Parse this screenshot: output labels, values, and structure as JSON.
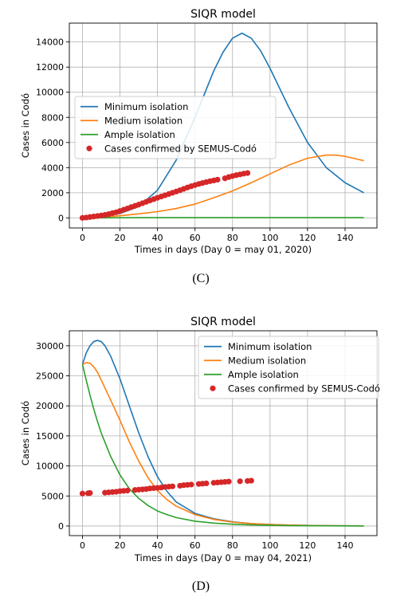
{
  "chart_data": [
    {
      "type": "line",
      "title": "SIQR model",
      "xlabel": "Times in days (Day 0 = may 01, 2020)",
      "ylabel": "Cases in Codó",
      "panel_label": "(C)",
      "xlim": [
        -7,
        157
      ],
      "ylim": [
        -800,
        15500
      ],
      "xticks": [
        0,
        20,
        40,
        60,
        80,
        100,
        120,
        140
      ],
      "yticks": [
        0,
        2000,
        4000,
        6000,
        8000,
        10000,
        12000,
        14000
      ],
      "grid": true,
      "legend_position": "center-left",
      "series": [
        {
          "name": "Minimum isolation",
          "color": "#1f77b4",
          "kind": "line",
          "x": [
            0,
            10,
            20,
            30,
            40,
            50,
            60,
            70,
            75,
            80,
            85,
            90,
            95,
            100,
            110,
            120,
            130,
            140,
            150
          ],
          "y": [
            0,
            120,
            350,
            900,
            2200,
            4600,
            8000,
            11700,
            13200,
            14300,
            14700,
            14300,
            13300,
            11900,
            8800,
            6000,
            4000,
            2800,
            2000
          ]
        },
        {
          "name": "Medium isolation",
          "color": "#ff7f0e",
          "kind": "line",
          "x": [
            0,
            10,
            20,
            30,
            40,
            50,
            60,
            70,
            80,
            90,
            100,
            110,
            120,
            130,
            135,
            140,
            150
          ],
          "y": [
            0,
            60,
            170,
            320,
            500,
            750,
            1100,
            1600,
            2150,
            2800,
            3500,
            4200,
            4750,
            5000,
            5000,
            4900,
            4550
          ]
        },
        {
          "name": "Ample isolation",
          "color": "#2ca02c",
          "kind": "line",
          "x": [
            0,
            10,
            20,
            30,
            50,
            100,
            150
          ],
          "y": [
            0,
            5,
            15,
            20,
            20,
            20,
            20
          ]
        },
        {
          "name": "Cases confirmed by SEMUS-Codó",
          "color": "#d62728",
          "kind": "scatter",
          "x": [
            0,
            2,
            4,
            6,
            8,
            10,
            12,
            14,
            16,
            18,
            20,
            22,
            24,
            26,
            28,
            30,
            32,
            34,
            36,
            38,
            40,
            42,
            44,
            46,
            48,
            50,
            52,
            54,
            56,
            58,
            60,
            62,
            64,
            66,
            68,
            70,
            72,
            76,
            78,
            80,
            82,
            84,
            86,
            88
          ],
          "y": [
            0,
            30,
            70,
            110,
            150,
            190,
            240,
            300,
            380,
            450,
            550,
            650,
            750,
            860,
            960,
            1060,
            1170,
            1280,
            1390,
            1490,
            1600,
            1700,
            1800,
            1900,
            2000,
            2100,
            2200,
            2310,
            2420,
            2520,
            2610,
            2700,
            2780,
            2850,
            2920,
            2980,
            3040,
            3150,
            3250,
            3330,
            3400,
            3460,
            3520,
            3570
          ]
        }
      ]
    },
    {
      "type": "line",
      "title": "SIQR model",
      "xlabel": "Times in days (Day 0 = may 04, 2021)",
      "ylabel": "Cases in Codó",
      "panel_label": "(D)",
      "xlim": [
        -7,
        157
      ],
      "ylim": [
        -1600,
        32500
      ],
      "xticks": [
        0,
        20,
        40,
        60,
        80,
        100,
        120,
        140
      ],
      "yticks": [
        0,
        5000,
        10000,
        15000,
        20000,
        25000,
        30000
      ],
      "grid": true,
      "legend_position": "top-right",
      "series": [
        {
          "name": "Minimum isolation",
          "color": "#1f77b4",
          "kind": "line",
          "x": [
            0,
            2,
            4,
            6,
            8,
            10,
            12,
            15,
            20,
            25,
            30,
            35,
            40,
            45,
            50,
            60,
            70,
            80,
            90,
            100,
            110,
            120,
            130,
            140,
            150
          ],
          "y": [
            26900,
            28800,
            30000,
            30700,
            30900,
            30700,
            30000,
            28300,
            24500,
            20000,
            15500,
            11500,
            8200,
            5800,
            4000,
            2100,
            1200,
            700,
            400,
            250,
            150,
            100,
            60,
            40,
            20
          ]
        },
        {
          "name": "Medium isolation",
          "color": "#ff7f0e",
          "kind": "line",
          "x": [
            0,
            2,
            4,
            6,
            8,
            10,
            15,
            20,
            25,
            30,
            35,
            40,
            45,
            50,
            60,
            70,
            80,
            90,
            100,
            110,
            120,
            130,
            140,
            150
          ],
          "y": [
            26900,
            27200,
            27100,
            26500,
            25600,
            24300,
            21000,
            17600,
            14000,
            10800,
            8000,
            5900,
            4400,
            3300,
            1900,
            1100,
            650,
            400,
            250,
            150,
            90,
            60,
            40,
            20
          ]
        },
        {
          "name": "Ample isolation",
          "color": "#2ca02c",
          "kind": "line",
          "x": [
            0,
            2,
            4,
            6,
            8,
            10,
            15,
            20,
            25,
            30,
            35,
            40,
            45,
            50,
            60,
            70,
            80,
            90,
            100,
            110,
            120,
            130,
            140,
            150
          ],
          "y": [
            26900,
            24300,
            21800,
            19500,
            17400,
            15500,
            11600,
            8500,
            6200,
            4600,
            3400,
            2500,
            1900,
            1400,
            800,
            480,
            300,
            180,
            110,
            70,
            45,
            30,
            20,
            10
          ]
        },
        {
          "name": "Cases confirmed by SEMUS-Codó",
          "color": "#d62728",
          "kind": "scatter",
          "x": [
            0,
            3,
            4,
            12,
            14,
            16,
            18,
            20,
            22,
            24,
            28,
            30,
            32,
            34,
            36,
            38,
            40,
            42,
            44,
            46,
            48,
            52,
            54,
            56,
            58,
            62,
            64,
            66,
            70,
            72,
            74,
            76,
            78,
            84,
            88,
            90
          ],
          "y": [
            5400,
            5450,
            5500,
            5550,
            5600,
            5650,
            5700,
            5800,
            5850,
            5900,
            6000,
            6050,
            6100,
            6150,
            6250,
            6300,
            6350,
            6400,
            6500,
            6550,
            6600,
            6700,
            6800,
            6850,
            6900,
            7000,
            7050,
            7100,
            7200,
            7250,
            7300,
            7350,
            7400,
            7450,
            7500,
            7550
          ]
        }
      ]
    }
  ]
}
